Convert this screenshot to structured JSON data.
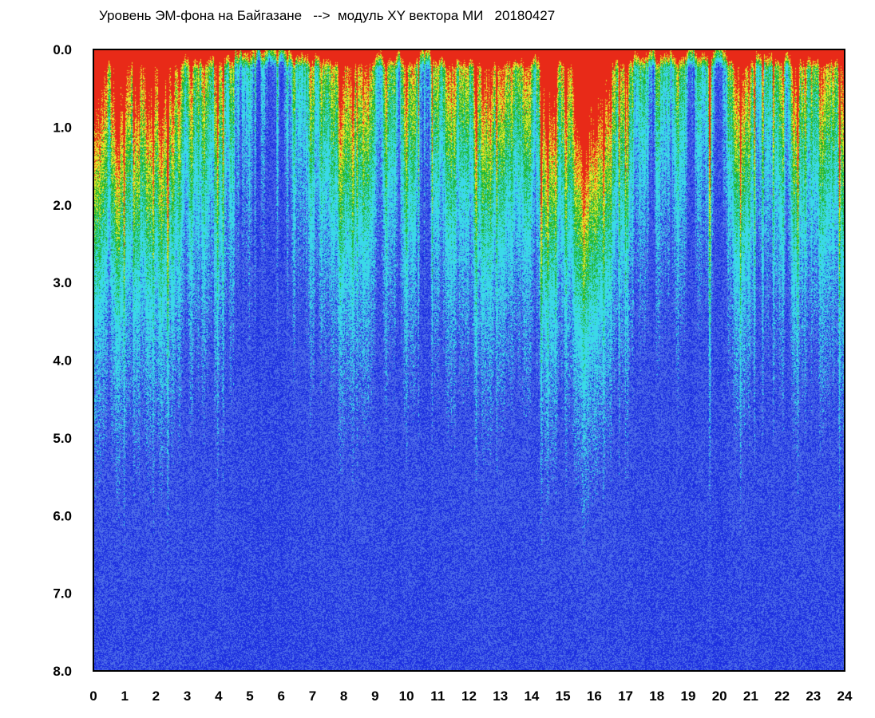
{
  "title": "Уровень ЭМ-фона на Байгазане   -->  модуль XY вектора МИ   20180427",
  "chart_data": {
    "type": "heatmap",
    "title": "Уровень ЭМ-фона на Байгазане   -->  модуль XY вектора МИ   20180427",
    "xlabel": "",
    "ylabel": "",
    "xlim": [
      0,
      24
    ],
    "ylim": [
      0.0,
      8.0
    ],
    "y_inverted": true,
    "x_ticks": [
      "0",
      "1",
      "2",
      "3",
      "4",
      "5",
      "6",
      "7",
      "8",
      "9",
      "10",
      "11",
      "12",
      "13",
      "14",
      "15",
      "16",
      "17",
      "18",
      "19",
      "20",
      "21",
      "22",
      "23",
      "24"
    ],
    "y_ticks": [
      "0.0",
      "1.0",
      "2.0",
      "3.0",
      "4.0",
      "5.0",
      "6.0",
      "7.0",
      "8.0"
    ],
    "colormap": [
      "#1c2ee0",
      "#4f6fe8",
      "#3ad9e8",
      "#22b832",
      "#e8e628",
      "#e82a18"
    ],
    "grid": false,
    "legend": "none",
    "description_hourly_intensity": [
      0.8,
      0.7,
      0.72,
      0.55,
      0.4,
      0.25,
      0.28,
      0.45,
      0.7,
      0.55,
      0.62,
      0.5,
      0.6,
      0.55,
      0.58,
      0.68,
      0.7,
      0.45,
      0.25,
      0.3,
      0.35,
      0.45,
      0.5,
      0.6
    ]
  },
  "colors": {
    "background": "#ffffff",
    "frame": "#000000",
    "text": "#000000"
  }
}
